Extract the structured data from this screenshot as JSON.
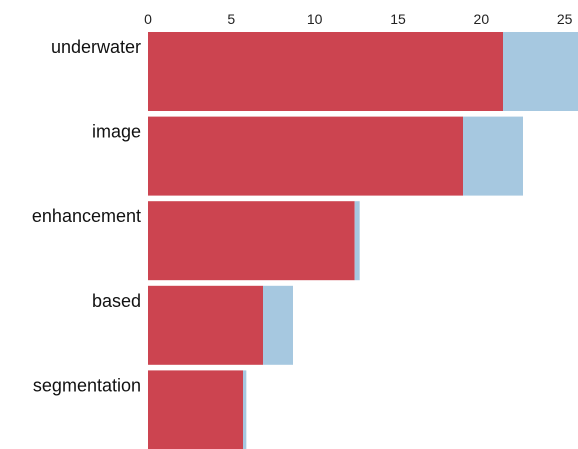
{
  "chart_data": {
    "type": "bar",
    "orientation": "horizontal",
    "stacked": true,
    "categories": [
      "underwater",
      "image",
      "enhancement",
      "based",
      "segmentation"
    ],
    "series": [
      {
        "color": "#cc4450",
        "values": [
          21.3,
          18.9,
          12.4,
          6.9,
          5.7
        ]
      },
      {
        "color": "#a6c8e0",
        "values": [
          4.8,
          3.6,
          0.3,
          1.8,
          0.2
        ]
      }
    ],
    "xticks": [
      0,
      5,
      10,
      15,
      20,
      25
    ],
    "xtick_labels": [
      "0",
      "5",
      "10",
      "15",
      "20",
      "25"
    ],
    "xlim": [
      0,
      25.8
    ],
    "axis_position": "top",
    "grid": false,
    "legend": "none"
  }
}
